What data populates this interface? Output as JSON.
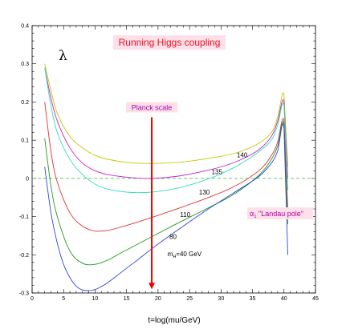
{
  "chart_data": {
    "type": "line",
    "title": "Running Higgs coupling",
    "xlabel": "t=log(mu/GeV)",
    "ylabel": "λ",
    "xlim": [
      0,
      45
    ],
    "ylim": [
      -0.3,
      0.4
    ],
    "xticks": [
      "0",
      "5",
      "10",
      "15",
      "20",
      "25",
      "30",
      "35",
      "40",
      "45"
    ],
    "yticks": [
      "-0.3",
      "-0.2",
      "-0.1",
      "0",
      "0.1",
      "0.2",
      "0.3",
      "0.4"
    ],
    "grid": false,
    "reference_line": {
      "y": 0,
      "color": "#33bb33",
      "style": "dashed"
    },
    "planck": {
      "label": "Planck scale",
      "x": 19,
      "y_from": 0.16,
      "y_to": -0.29,
      "color": "#ee0000"
    },
    "landau": {
      "label_greek": "α",
      "label_sub": "1",
      "label_rest": " \"Landau pole\""
    },
    "series": [
      {
        "name": "140",
        "color": "#c8c800",
        "x": [
          2,
          3,
          4,
          6,
          8,
          10,
          12,
          15,
          18,
          21,
          24,
          27,
          30,
          33,
          36,
          38,
          39,
          40,
          40.6
        ],
        "y": [
          0.3,
          0.23,
          0.17,
          0.11,
          0.08,
          0.06,
          0.05,
          0.042,
          0.039,
          0.04,
          0.043,
          0.05,
          0.058,
          0.07,
          0.092,
          0.12,
          0.16,
          0.22,
          0.03
        ]
      },
      {
        "name": "135",
        "color": "#cc22cc",
        "x": [
          2,
          3,
          4,
          6,
          8,
          10,
          12,
          15,
          18,
          21,
          24,
          27,
          30,
          33,
          36,
          38,
          39,
          40,
          40.6
        ],
        "y": [
          0.29,
          0.21,
          0.15,
          0.08,
          0.04,
          0.02,
          0.01,
          0.003,
          0.0,
          0.002,
          0.008,
          0.018,
          0.03,
          0.048,
          0.075,
          0.11,
          0.15,
          0.2,
          0.0
        ]
      },
      {
        "name": "130",
        "color": "#33ddbb",
        "x": [
          2,
          3,
          4,
          6,
          8,
          10,
          12,
          15,
          18,
          21,
          24,
          27,
          30,
          33,
          36,
          38,
          39,
          40,
          40.6
        ],
        "y": [
          0.29,
          0.19,
          0.12,
          0.05,
          0.01,
          -0.015,
          -0.028,
          -0.036,
          -0.037,
          -0.032,
          -0.022,
          -0.007,
          0.012,
          0.037,
          0.07,
          0.1,
          0.14,
          0.19,
          -0.03
        ]
      },
      {
        "name": "110",
        "color": "#dd3333",
        "x": [
          2,
          3,
          4,
          6,
          8,
          10,
          12,
          14,
          17,
          20,
          24,
          28,
          32,
          36,
          38,
          39,
          40,
          40.6
        ],
        "y": [
          0.2,
          0.07,
          -0.01,
          -0.09,
          -0.125,
          -0.138,
          -0.136,
          -0.128,
          -0.113,
          -0.097,
          -0.074,
          -0.05,
          -0.022,
          0.02,
          0.06,
          0.095,
          0.15,
          -0.08
        ]
      },
      {
        "name": "80",
        "color": "#229922",
        "x": [
          2,
          3,
          4,
          6,
          8,
          10,
          12,
          14,
          17,
          20,
          24,
          28,
          32,
          36,
          38,
          39,
          40,
          40.6
        ],
        "y": [
          0.105,
          -0.02,
          -0.1,
          -0.19,
          -0.222,
          -0.225,
          -0.214,
          -0.196,
          -0.17,
          -0.144,
          -0.11,
          -0.077,
          -0.042,
          0.008,
          0.05,
          0.085,
          0.14,
          -0.12
        ]
      },
      {
        "name": "m_H=40 GeV",
        "color": "#3344dd",
        "x": [
          2,
          3,
          4,
          5,
          6,
          7,
          8,
          9,
          10,
          11,
          12,
          14,
          17,
          20,
          24,
          28,
          32,
          36,
          38,
          39,
          40,
          40.6
        ],
        "y": [
          0.03,
          -0.09,
          -0.17,
          -0.225,
          -0.26,
          -0.282,
          -0.292,
          -0.294,
          -0.291,
          -0.283,
          -0.273,
          -0.248,
          -0.21,
          -0.172,
          -0.125,
          -0.08,
          -0.038,
          0.005,
          0.04,
          0.072,
          0.13,
          -0.2
        ]
      }
    ],
    "curve_labels": [
      {
        "text": "140",
        "x": 32.5,
        "y": 0.062
      },
      {
        "text": "135",
        "x": 28.5,
        "y": 0.018
      },
      {
        "text": "130",
        "x": 26.5,
        "y": -0.036
      },
      {
        "text": "110",
        "x": 23.5,
        "y": -0.095
      },
      {
        "text": "80",
        "x": 21.8,
        "y": -0.152
      },
      {
        "text": "m",
        "x": 21.5,
        "y": -0.197
      }
    ],
    "mh_label": {
      "base": "m",
      "sub": "H",
      "rest": "=40 GeV"
    }
  }
}
